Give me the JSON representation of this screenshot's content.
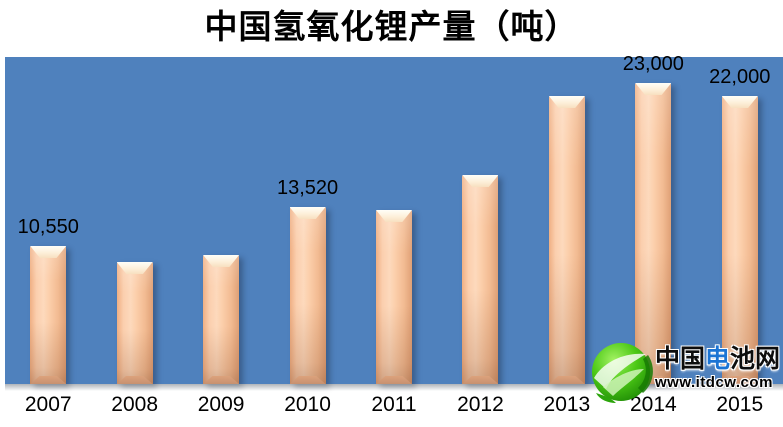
{
  "chart_data": {
    "type": "bar",
    "title": "中国氢氧化锂产量（吨）",
    "categories": [
      "2007",
      "2008",
      "2009",
      "2010",
      "2011",
      "2012",
      "2013",
      "2014",
      "2015"
    ],
    "values": [
      10550,
      9300,
      9900,
      13520,
      13300,
      16000,
      22000,
      23000,
      22000
    ],
    "data_labels": [
      "10,550",
      "",
      "",
      "13,520",
      "",
      "",
      "",
      "23,000",
      "22,000"
    ],
    "xlabel": "",
    "ylabel": "",
    "ylim": [
      0,
      25000
    ],
    "grid": false,
    "legend": false,
    "plot_bg_color": "#4F81BD",
    "bar_color": "#FBCDA9",
    "bar_edge_color": "#DFA076",
    "bar_top_face_color": "#FDF0DA",
    "label_color": "#000000"
  },
  "watermark": {
    "logo_icon": "green-leaf-globe-icon",
    "site_name_prefix": "中国",
    "site_name_highlight": "电",
    "site_name_suffix": "池网",
    "site_url": "www.itdcw.com",
    "highlight_color": "#1B74D4",
    "logo_green": "#3FBF10"
  }
}
